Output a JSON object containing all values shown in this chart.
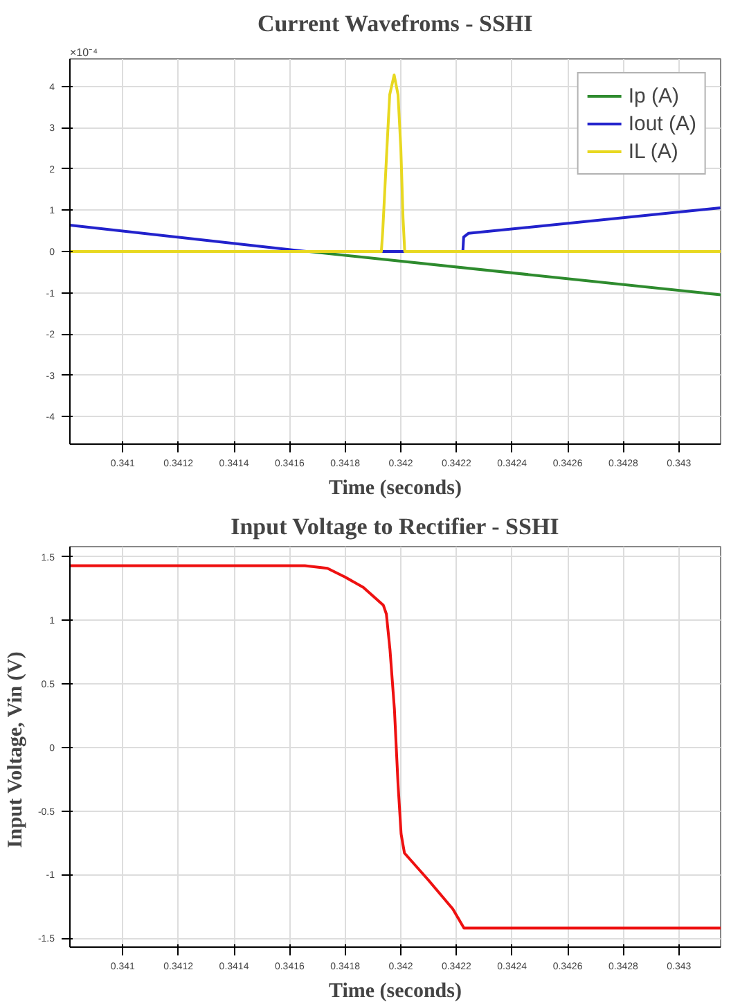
{
  "chart_data": [
    {
      "type": "line",
      "title": "Current Wavefroms - SSHI",
      "xlabel": "Time (seconds)",
      "annotations": [
        "×10⁻⁴"
      ],
      "xlim": [
        0.34081,
        0.34315
      ],
      "xticks": [
        0.341,
        0.3412,
        0.3414,
        0.3416,
        0.3418,
        0.342,
        0.3422,
        0.3424,
        0.3426,
        0.3428,
        0.343
      ],
      "ylim": [
        -4.67,
        4.67
      ],
      "yticks": [
        -4,
        -3,
        -2,
        -1,
        0,
        1,
        2,
        3,
        4
      ],
      "grid": true,
      "legend": "top right",
      "line_style": "solid",
      "series": [
        {
          "name": "Ip (A)",
          "color": "#2e8b2e",
          "x": [
            0.34167,
            0.34315
          ],
          "values": [
            0,
            -1.05
          ]
        },
        {
          "name": "Iout (A)",
          "color": "#2222cc",
          "x": [
            0.34081,
            0.34166,
            0.34193,
            0.342223,
            0.342226,
            0.342243,
            0.343149
          ],
          "values": [
            0.64,
            0,
            0,
            0,
            0.35,
            0.44,
            1.06
          ]
        },
        {
          "name": "IL (A)",
          "color": "#e8d820",
          "x": [
            0.34081,
            0.34193,
            0.341935,
            0.34195,
            0.34196,
            0.341976,
            0.34199,
            0.342,
            0.342008,
            0.342014,
            0.34315
          ],
          "values": [
            0,
            0,
            0.5,
            2.5,
            3.8,
            4.28,
            3.8,
            2.5,
            0.8,
            0,
            0
          ]
        }
      ]
    },
    {
      "type": "line",
      "title": "Input Voltage to Rectifier - SSHI",
      "xlabel": "Time (seconds)",
      "ylabel": "Input Voltage,  Vin (V)",
      "xlim": [
        0.34081,
        0.34315
      ],
      "xticks": [
        0.341,
        0.3412,
        0.3414,
        0.3416,
        0.3418,
        0.342,
        0.3422,
        0.3424,
        0.3426,
        0.3428,
        0.343
      ],
      "ylim": [
        -1.57,
        1.58
      ],
      "yticks": [
        -1.5,
        -1,
        -0.5,
        0,
        0.5,
        1,
        1.5
      ],
      "grid": true,
      "line_style": "solid",
      "series": [
        {
          "color": "#ee1111",
          "x": [
            0.34081,
            0.341655,
            0.341736,
            0.3418,
            0.341865,
            0.341937,
            0.341948,
            0.341961,
            0.341977,
            0.34199,
            0.342001,
            0.342013,
            0.342098,
            0.342187,
            0.342227,
            0.34315
          ],
          "values": [
            1.43,
            1.43,
            1.41,
            1.34,
            1.26,
            1.12,
            1.05,
            0.77,
            0.3,
            -0.29,
            -0.68,
            -0.83,
            -1.04,
            -1.27,
            -1.42,
            -1.42
          ]
        }
      ]
    }
  ]
}
